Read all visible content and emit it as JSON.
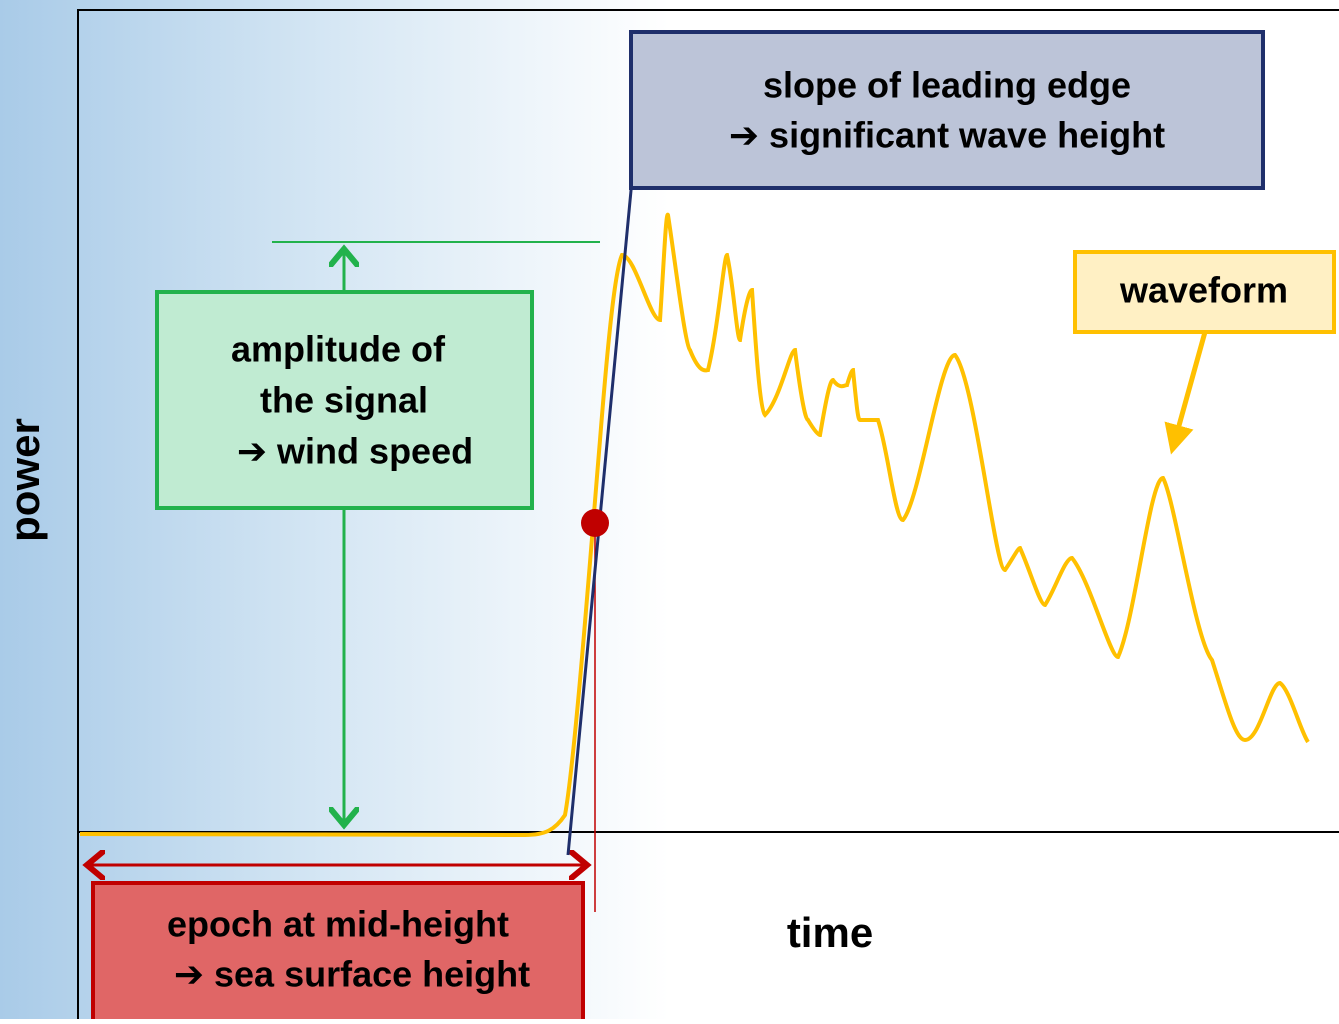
{
  "axes": {
    "y_label": "power",
    "x_label": "time"
  },
  "annotations": {
    "slope": {
      "lines": [
        "slope of leading edge",
        "➔  significant wave height"
      ]
    },
    "amplitude": {
      "lines": [
        "amplitude of",
        "the signal",
        "➔  wind speed"
      ]
    },
    "waveform": {
      "label": "waveform"
    },
    "epoch": {
      "lines": [
        "epoch at mid-height",
        "➔  sea surface height"
      ]
    }
  }
}
